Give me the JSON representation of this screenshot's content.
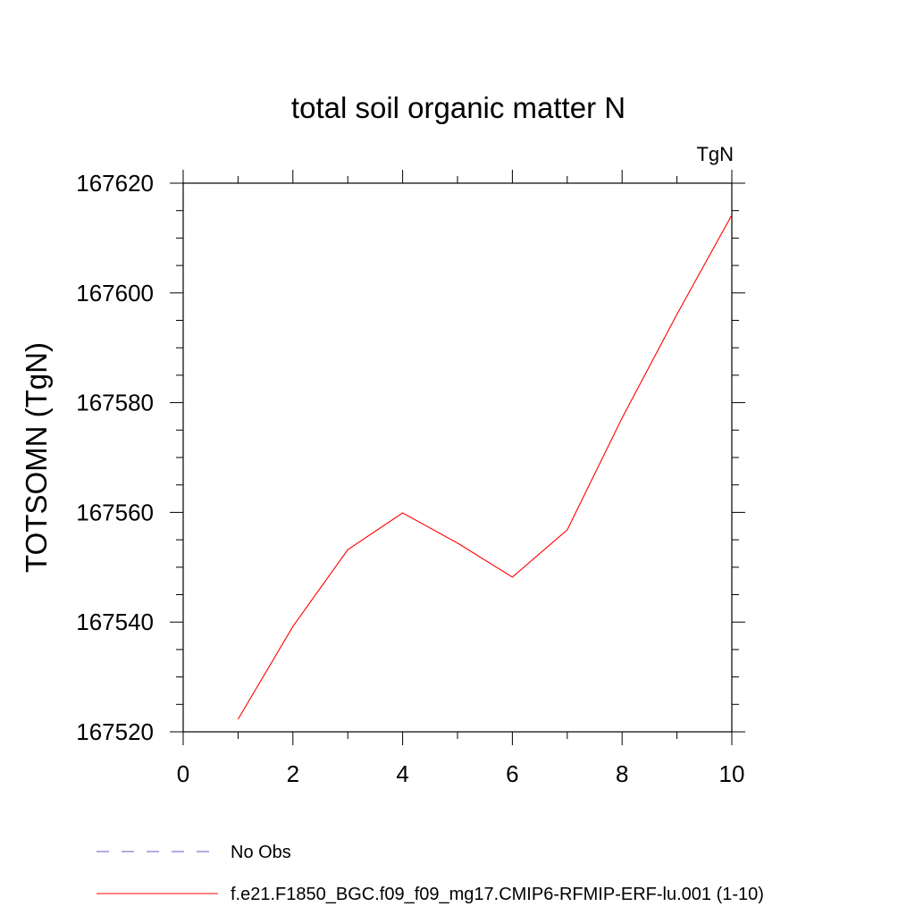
{
  "chart_data": {
    "type": "line",
    "title": "total soil organic matter N",
    "units_label": "TgN",
    "xlabel": "",
    "ylabel": "TOTSOMN  (TgN)",
    "xlim": [
      0,
      10
    ],
    "ylim": [
      167520,
      167620
    ],
    "x_ticks": [
      0,
      2,
      4,
      6,
      8,
      10
    ],
    "y_ticks": [
      167520,
      167540,
      167560,
      167580,
      167600,
      167620
    ],
    "x_tick_labels": [
      "0",
      "2",
      "4",
      "6",
      "8",
      "10"
    ],
    "y_tick_labels": [
      "167520",
      "167540",
      "167560",
      "167580",
      "167600",
      "167620"
    ],
    "x_minor_step": 1,
    "y_minor_step": 5,
    "grid": false,
    "legend_position": "bottom-left",
    "series": [
      {
        "name": "f.e21.F1850_BGC.f09_f09_mg17.CMIP6-RFMIP-ERF-lu.001 (1-10)",
        "color": "#ff0000",
        "dash": "solid",
        "x": [
          1,
          2,
          3,
          4,
          5,
          6,
          7,
          8,
          9,
          10
        ],
        "y": [
          167522.3,
          167539.2,
          167553.2,
          167559.9,
          167554.4,
          167548.2,
          167556.8,
          167577.2,
          167596.1,
          167614.2
        ]
      }
    ],
    "legend": [
      {
        "label": "No Obs",
        "color": "#6a5acd",
        "dash": "dashed"
      },
      {
        "label": "f.e21.F1850_BGC.f09_f09_mg17.CMIP6-RFMIP-ERF-lu.001 (1-10)",
        "color": "#ff0000",
        "dash": "solid"
      }
    ]
  }
}
